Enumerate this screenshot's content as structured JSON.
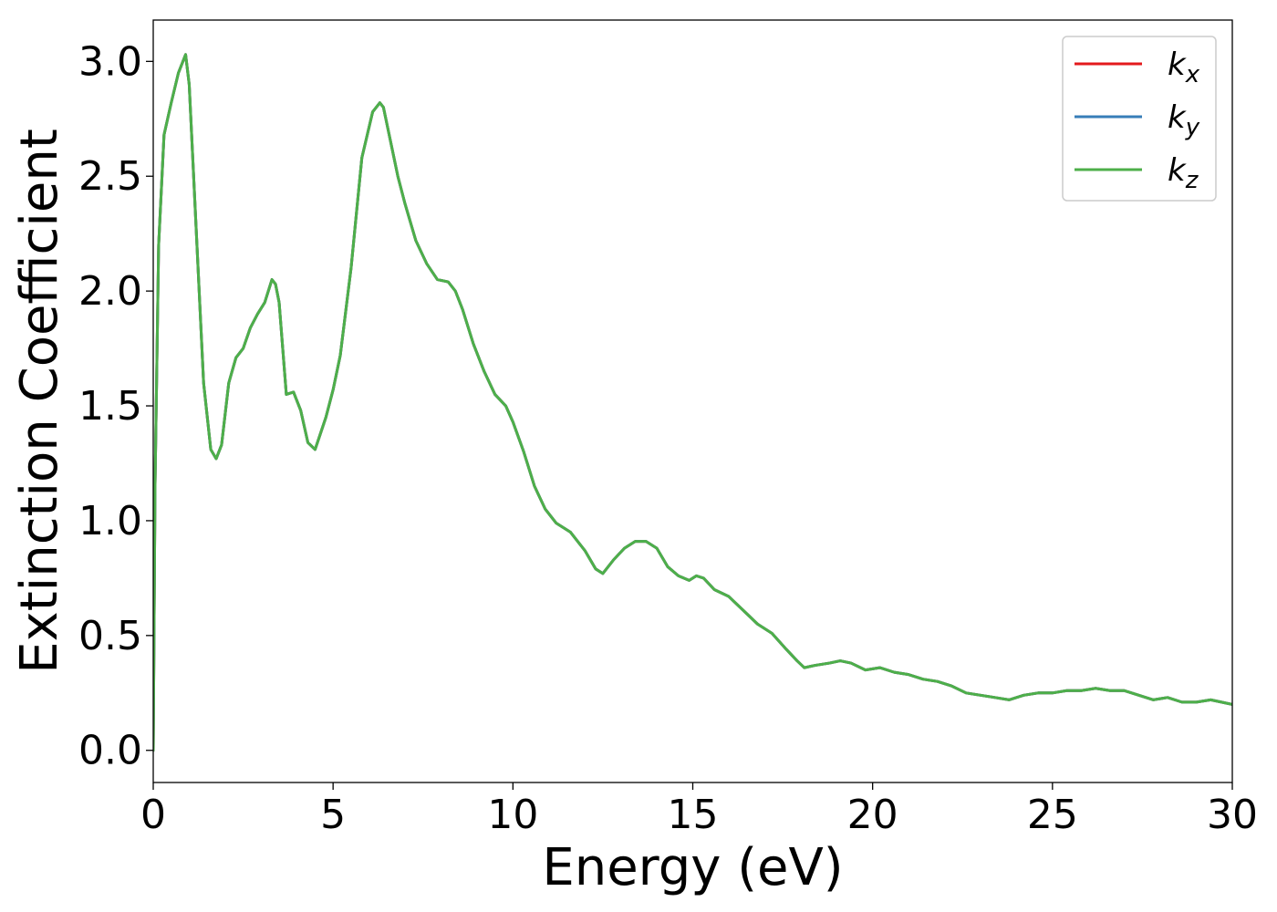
{
  "chart_data": {
    "type": "line",
    "title": "",
    "xlabel": "Energy (eV)",
    "ylabel": "Extinction Coefficient",
    "xlim": [
      0,
      30
    ],
    "ylim": [
      -0.14,
      3.18
    ],
    "x_ticks": [
      0,
      5,
      10,
      15,
      20,
      25,
      30
    ],
    "y_ticks": [
      "0.0",
      "0.5",
      "1.0",
      "1.5",
      "2.0",
      "2.5",
      "3.0"
    ],
    "grid": false,
    "legend_position": "top-right",
    "x": [
      0.0,
      0.05,
      0.15,
      0.3,
      0.5,
      0.7,
      0.9,
      1.0,
      1.2,
      1.4,
      1.6,
      1.75,
      1.9,
      2.1,
      2.3,
      2.5,
      2.7,
      2.9,
      3.1,
      3.3,
      3.4,
      3.5,
      3.7,
      3.9,
      4.1,
      4.3,
      4.5,
      4.65,
      4.8,
      5.0,
      5.2,
      5.5,
      5.8,
      6.1,
      6.3,
      6.4,
      6.6,
      6.8,
      7.0,
      7.3,
      7.6,
      7.9,
      8.2,
      8.4,
      8.6,
      8.9,
      9.2,
      9.5,
      9.8,
      10.0,
      10.3,
      10.6,
      10.9,
      11.2,
      11.6,
      12.0,
      12.3,
      12.5,
      12.8,
      13.1,
      13.4,
      13.7,
      14.0,
      14.3,
      14.6,
      14.9,
      15.1,
      15.3,
      15.6,
      16.0,
      16.4,
      16.8,
      17.2,
      17.6,
      17.9,
      18.1,
      18.4,
      18.8,
      19.1,
      19.4,
      19.8,
      20.2,
      20.6,
      21.0,
      21.4,
      21.8,
      22.2,
      22.6,
      23.0,
      23.4,
      23.8,
      24.2,
      24.6,
      25.0,
      25.4,
      25.8,
      26.2,
      26.6,
      27.0,
      27.4,
      27.8,
      28.2,
      28.6,
      29.0,
      29.4,
      29.7,
      30.0
    ],
    "series": [
      {
        "name": "k_x",
        "color": "#e41a1c",
        "values": [
          0.0,
          1.15,
          2.2,
          2.68,
          2.82,
          2.95,
          3.03,
          2.9,
          2.25,
          1.6,
          1.31,
          1.27,
          1.33,
          1.6,
          1.71,
          1.75,
          1.84,
          1.9,
          1.95,
          2.05,
          2.03,
          1.95,
          1.55,
          1.56,
          1.48,
          1.34,
          1.31,
          1.38,
          1.45,
          1.57,
          1.72,
          2.1,
          2.58,
          2.78,
          2.82,
          2.8,
          2.65,
          2.5,
          2.38,
          2.22,
          2.12,
          2.05,
          2.04,
          2.0,
          1.92,
          1.77,
          1.65,
          1.55,
          1.5,
          1.43,
          1.3,
          1.15,
          1.05,
          0.99,
          0.95,
          0.87,
          0.79,
          0.77,
          0.83,
          0.88,
          0.91,
          0.91,
          0.88,
          0.8,
          0.76,
          0.74,
          0.76,
          0.75,
          0.7,
          0.67,
          0.61,
          0.55,
          0.51,
          0.44,
          0.39,
          0.36,
          0.37,
          0.38,
          0.39,
          0.38,
          0.35,
          0.36,
          0.34,
          0.33,
          0.31,
          0.3,
          0.28,
          0.25,
          0.24,
          0.23,
          0.22,
          0.24,
          0.25,
          0.25,
          0.26,
          0.26,
          0.27,
          0.26,
          0.26,
          0.24,
          0.22,
          0.23,
          0.21,
          0.21,
          0.22,
          0.21,
          0.2
        ]
      },
      {
        "name": "k_y",
        "color": "#377eb8",
        "values": [
          0.0,
          1.15,
          2.2,
          2.68,
          2.82,
          2.95,
          3.03,
          2.9,
          2.25,
          1.6,
          1.31,
          1.27,
          1.33,
          1.6,
          1.71,
          1.75,
          1.84,
          1.9,
          1.95,
          2.05,
          2.03,
          1.95,
          1.55,
          1.56,
          1.48,
          1.34,
          1.31,
          1.38,
          1.45,
          1.57,
          1.72,
          2.1,
          2.58,
          2.78,
          2.82,
          2.8,
          2.65,
          2.5,
          2.38,
          2.22,
          2.12,
          2.05,
          2.04,
          2.0,
          1.92,
          1.77,
          1.65,
          1.55,
          1.5,
          1.43,
          1.3,
          1.15,
          1.05,
          0.99,
          0.95,
          0.87,
          0.79,
          0.77,
          0.83,
          0.88,
          0.91,
          0.91,
          0.88,
          0.8,
          0.76,
          0.74,
          0.76,
          0.75,
          0.7,
          0.67,
          0.61,
          0.55,
          0.51,
          0.44,
          0.39,
          0.36,
          0.37,
          0.38,
          0.39,
          0.38,
          0.35,
          0.36,
          0.34,
          0.33,
          0.31,
          0.3,
          0.28,
          0.25,
          0.24,
          0.23,
          0.22,
          0.24,
          0.25,
          0.25,
          0.26,
          0.26,
          0.27,
          0.26,
          0.26,
          0.24,
          0.22,
          0.23,
          0.21,
          0.21,
          0.22,
          0.21,
          0.2
        ]
      },
      {
        "name": "k_z",
        "color": "#4daf4a",
        "values": [
          0.0,
          1.15,
          2.2,
          2.68,
          2.82,
          2.95,
          3.03,
          2.9,
          2.25,
          1.6,
          1.31,
          1.27,
          1.33,
          1.6,
          1.71,
          1.75,
          1.84,
          1.9,
          1.95,
          2.05,
          2.03,
          1.95,
          1.55,
          1.56,
          1.48,
          1.34,
          1.31,
          1.38,
          1.45,
          1.57,
          1.72,
          2.1,
          2.58,
          2.78,
          2.82,
          2.8,
          2.65,
          2.5,
          2.38,
          2.22,
          2.12,
          2.05,
          2.04,
          2.0,
          1.92,
          1.77,
          1.65,
          1.55,
          1.5,
          1.43,
          1.3,
          1.15,
          1.05,
          0.99,
          0.95,
          0.87,
          0.79,
          0.77,
          0.83,
          0.88,
          0.91,
          0.91,
          0.88,
          0.8,
          0.76,
          0.74,
          0.76,
          0.75,
          0.7,
          0.67,
          0.61,
          0.55,
          0.51,
          0.44,
          0.39,
          0.36,
          0.37,
          0.38,
          0.39,
          0.38,
          0.35,
          0.36,
          0.34,
          0.33,
          0.31,
          0.3,
          0.28,
          0.25,
          0.24,
          0.23,
          0.22,
          0.24,
          0.25,
          0.25,
          0.26,
          0.26,
          0.27,
          0.26,
          0.26,
          0.24,
          0.22,
          0.23,
          0.21,
          0.21,
          0.22,
          0.21,
          0.2
        ]
      }
    ],
    "legend": [
      {
        "base": "k",
        "sub": "x",
        "color": "#e41a1c"
      },
      {
        "base": "k",
        "sub": "y",
        "color": "#377eb8"
      },
      {
        "base": "k",
        "sub": "z",
        "color": "#4daf4a"
      }
    ]
  }
}
